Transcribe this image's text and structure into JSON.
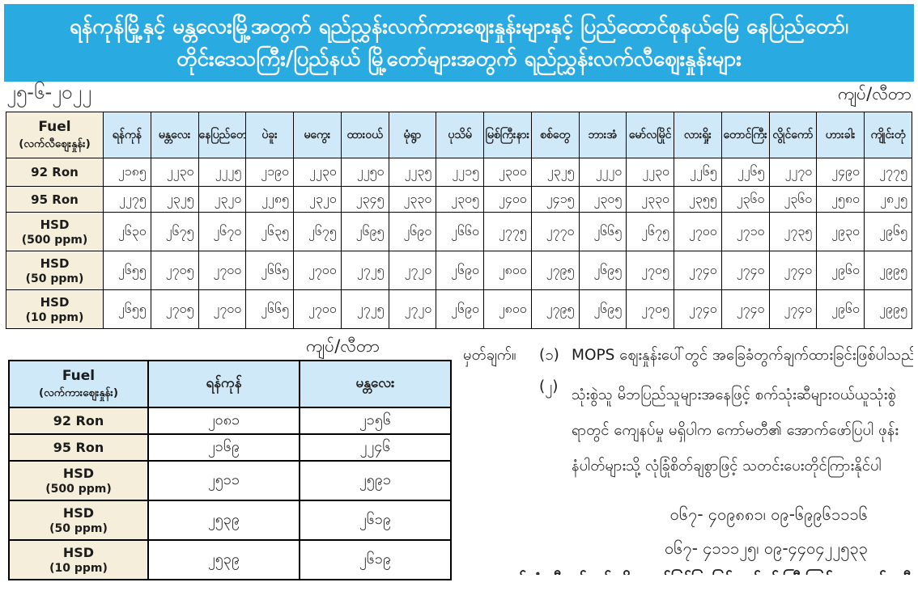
{
  "banner": {
    "line1": "ရန်ကုန်မြို့နှင့် မန္တလေးမြို့အတွက် ရည်ညွှန်းလက်ကားဈေးနှုန်းများနှင့် ပြည်ထောင်စုနယ်မြေ နေပြည်တော်၊",
    "line2": "တိုင်းဒေသကြီး/ပြည်နယ် မြို့တော်များအတွက် ရည်ညွှန်းလက်လီဈေးနှုန်းများ"
  },
  "date": "၂၅-၆-၂၀၂၂",
  "unit_label_top": "ကျပ်/လီတာ",
  "unit_label_bottom": "ကျပ်/လီတာ",
  "colors": {
    "banner_blue": "#29abe2",
    "header_light_blue": "#cfe9f8",
    "label_cream": "#f4eeda"
  },
  "main_table": {
    "fuel_header": "Fuel",
    "fuel_subheader": "(လက်လီဈေးနှုန်း)",
    "cities": [
      "ရန်ကုန်",
      "မန္တလေး",
      "နေပြည်တော်",
      "ပဲခူး",
      "မကွေး",
      "ထားဝယ်",
      "မုံရွာ",
      "ပုသိမ်",
      "မြစ်ကြီးနား",
      "စစ်တွေ",
      "ဘားအံ",
      "မော်လမြိုင်",
      "လားရှိုး",
      "တောင်ကြီး",
      "လွိုင်ကော်",
      "ဟားခါး",
      "ကျိုင်းတုံ"
    ],
    "rows": [
      {
        "label": "92 Ron",
        "sub": "",
        "values": [
          "၂၁၈၅",
          "၂၂၃၀",
          "၂၂၂၅",
          "၂၁၉၀",
          "၂၂၃၀",
          "၂၂၅၀",
          "၂၂၃၅",
          "၂၂၁၅",
          "၂၃၀၀",
          "၂၃၂၅",
          "၂၂၂၀",
          "၂၂၃၀",
          "၂၂၆၅",
          "၂၂၆၅",
          "၂၂၇၀",
          "၂၄၉၀",
          "၂၇၇၅"
        ]
      },
      {
        "label": "95 Ron",
        "sub": "",
        "values": [
          "၂၂၇၅",
          "၂၃၂၅",
          "၂၃၂၀",
          "၂၂၈၅",
          "၂၃၂၀",
          "၂၃၄၅",
          "၂၃၃၀",
          "၂၃၀၅",
          "၂၄၀၀",
          "၂၄၁၅",
          "၂၃၀၅",
          "၂၃၃၀",
          "၂၃၅၅",
          "၂၃၆၀",
          "၂၃၆၀",
          "၂၅၈၀",
          "၂၈၂၅"
        ]
      },
      {
        "label": "HSD",
        "sub": "(500 ppm)",
        "values": [
          "၂၆၃၀",
          "၂၆၇၅",
          "၂၆၇၀",
          "၂၆၃၅",
          "၂၆၇၅",
          "၂၆၉၅",
          "၂၆၉၀",
          "၂၆၆၀",
          "၂၇၇၅",
          "၂၇၇၀",
          "၂၆၆၅",
          "၂၆၇၅",
          "၂၇၀၀",
          "၂၇၁၀",
          "၂၇၃၅",
          "၂၉၃၀",
          "၂၉၆၅"
        ]
      },
      {
        "label": "HSD",
        "sub": "(50 ppm)",
        "values": [
          "၂၆၅၅",
          "၂၇၀၅",
          "၂၇၀၀",
          "၂၆၆၅",
          "၂၇၀၀",
          "၂၇၂၅",
          "၂၇၂၀",
          "၂၆၉၀",
          "၂၈၀၀",
          "၂၇၉၅",
          "၂၆၉၅",
          "၂၇၀၅",
          "၂၇၄၀",
          "၂၇၄၀",
          "၂၇၄၀",
          "၂၉၆၀",
          "၂၉၉၅"
        ]
      },
      {
        "label": "HSD",
        "sub": "(10 ppm)",
        "values": [
          "၂၆၅၅",
          "၂၇၀၅",
          "၂၇၀၀",
          "၂၆၆၅",
          "၂၇၀၀",
          "၂၇၂၅",
          "၂၇၂၀",
          "၂၆၉၀",
          "၂၈၀၀",
          "၂၇၉၅",
          "၂၆၉၅",
          "၂၇၀၅",
          "၂၇၄၀",
          "၂၇၄၀",
          "၂၇၄၀",
          "၂၉၆၀",
          "၂၉၉၅"
        ]
      }
    ]
  },
  "wholesale_table": {
    "fuel_header": "Fuel",
    "fuel_subheader": "(လက်ကားဈေးနှုန်း)",
    "cities": [
      "ရန်ကုန်",
      "မန္တလေး"
    ],
    "rows": [
      {
        "label": "92 Ron",
        "sub": "",
        "values": [
          "၂၀၈၁",
          "၂၁၅၆"
        ]
      },
      {
        "label": "95 Ron",
        "sub": "",
        "values": [
          "၂၁၆၉",
          "၂၂၄၆"
        ]
      },
      {
        "label": "HSD",
        "sub": "(500 ppm)",
        "values": [
          "၂၅၁၁",
          "၂၅၉၁"
        ]
      },
      {
        "label": "HSD",
        "sub": "(50 ppm)",
        "values": [
          "၂၅၃၉",
          "၂၆၁၉"
        ]
      },
      {
        "label": "HSD",
        "sub": "(10 ppm)",
        "values": [
          "၂၅၃၉",
          "၂၆၁၉"
        ]
      }
    ]
  },
  "notes": {
    "prefix": "မှတ်ချက်။",
    "item1_num": "(၁)",
    "item1_text": "MOPS ဈေးနှုန်းပေါ်တွင် အခြေခံတွက်ချက်ထားခြင်းဖြစ်ပါသည်။",
    "item2_num": "(၂)",
    "item2_text": "သုံးစွဲသူ မိဘပြည်သူများအနေဖြင့် စက်သုံးဆီများဝယ်ယူသုံးစွဲရာတွင် ကျေနပ်မှု မရှိပါက ကော်မတီ၏ အောက်ဖော်ပြပါ ဖုန်းနံပါတ်များသို့ လုံခြုံစိတ်ချစွာဖြင့် သတင်းပေးတိုင်ကြားနိုင်ပါကြောင်း အသိပေးအပ်ပါသည်-",
    "phone1": "၀၆၇- ၄၀၉၈၈၁၊ ၀၉-၆၉၉၆၁၁၁၆",
    "phone2": "၀၆၇- ၄၁၁၁၂၅၊ ၀၉-၄၄၀၄၂၂၅၃၃",
    "committee": "စက်သုံးဆီတင်သွင်းသိုလှောင်ဖြန့်ဖြူးခြင်းလုပ်ငန်းကြီးကြပ်ရေးကော်မတီ"
  }
}
